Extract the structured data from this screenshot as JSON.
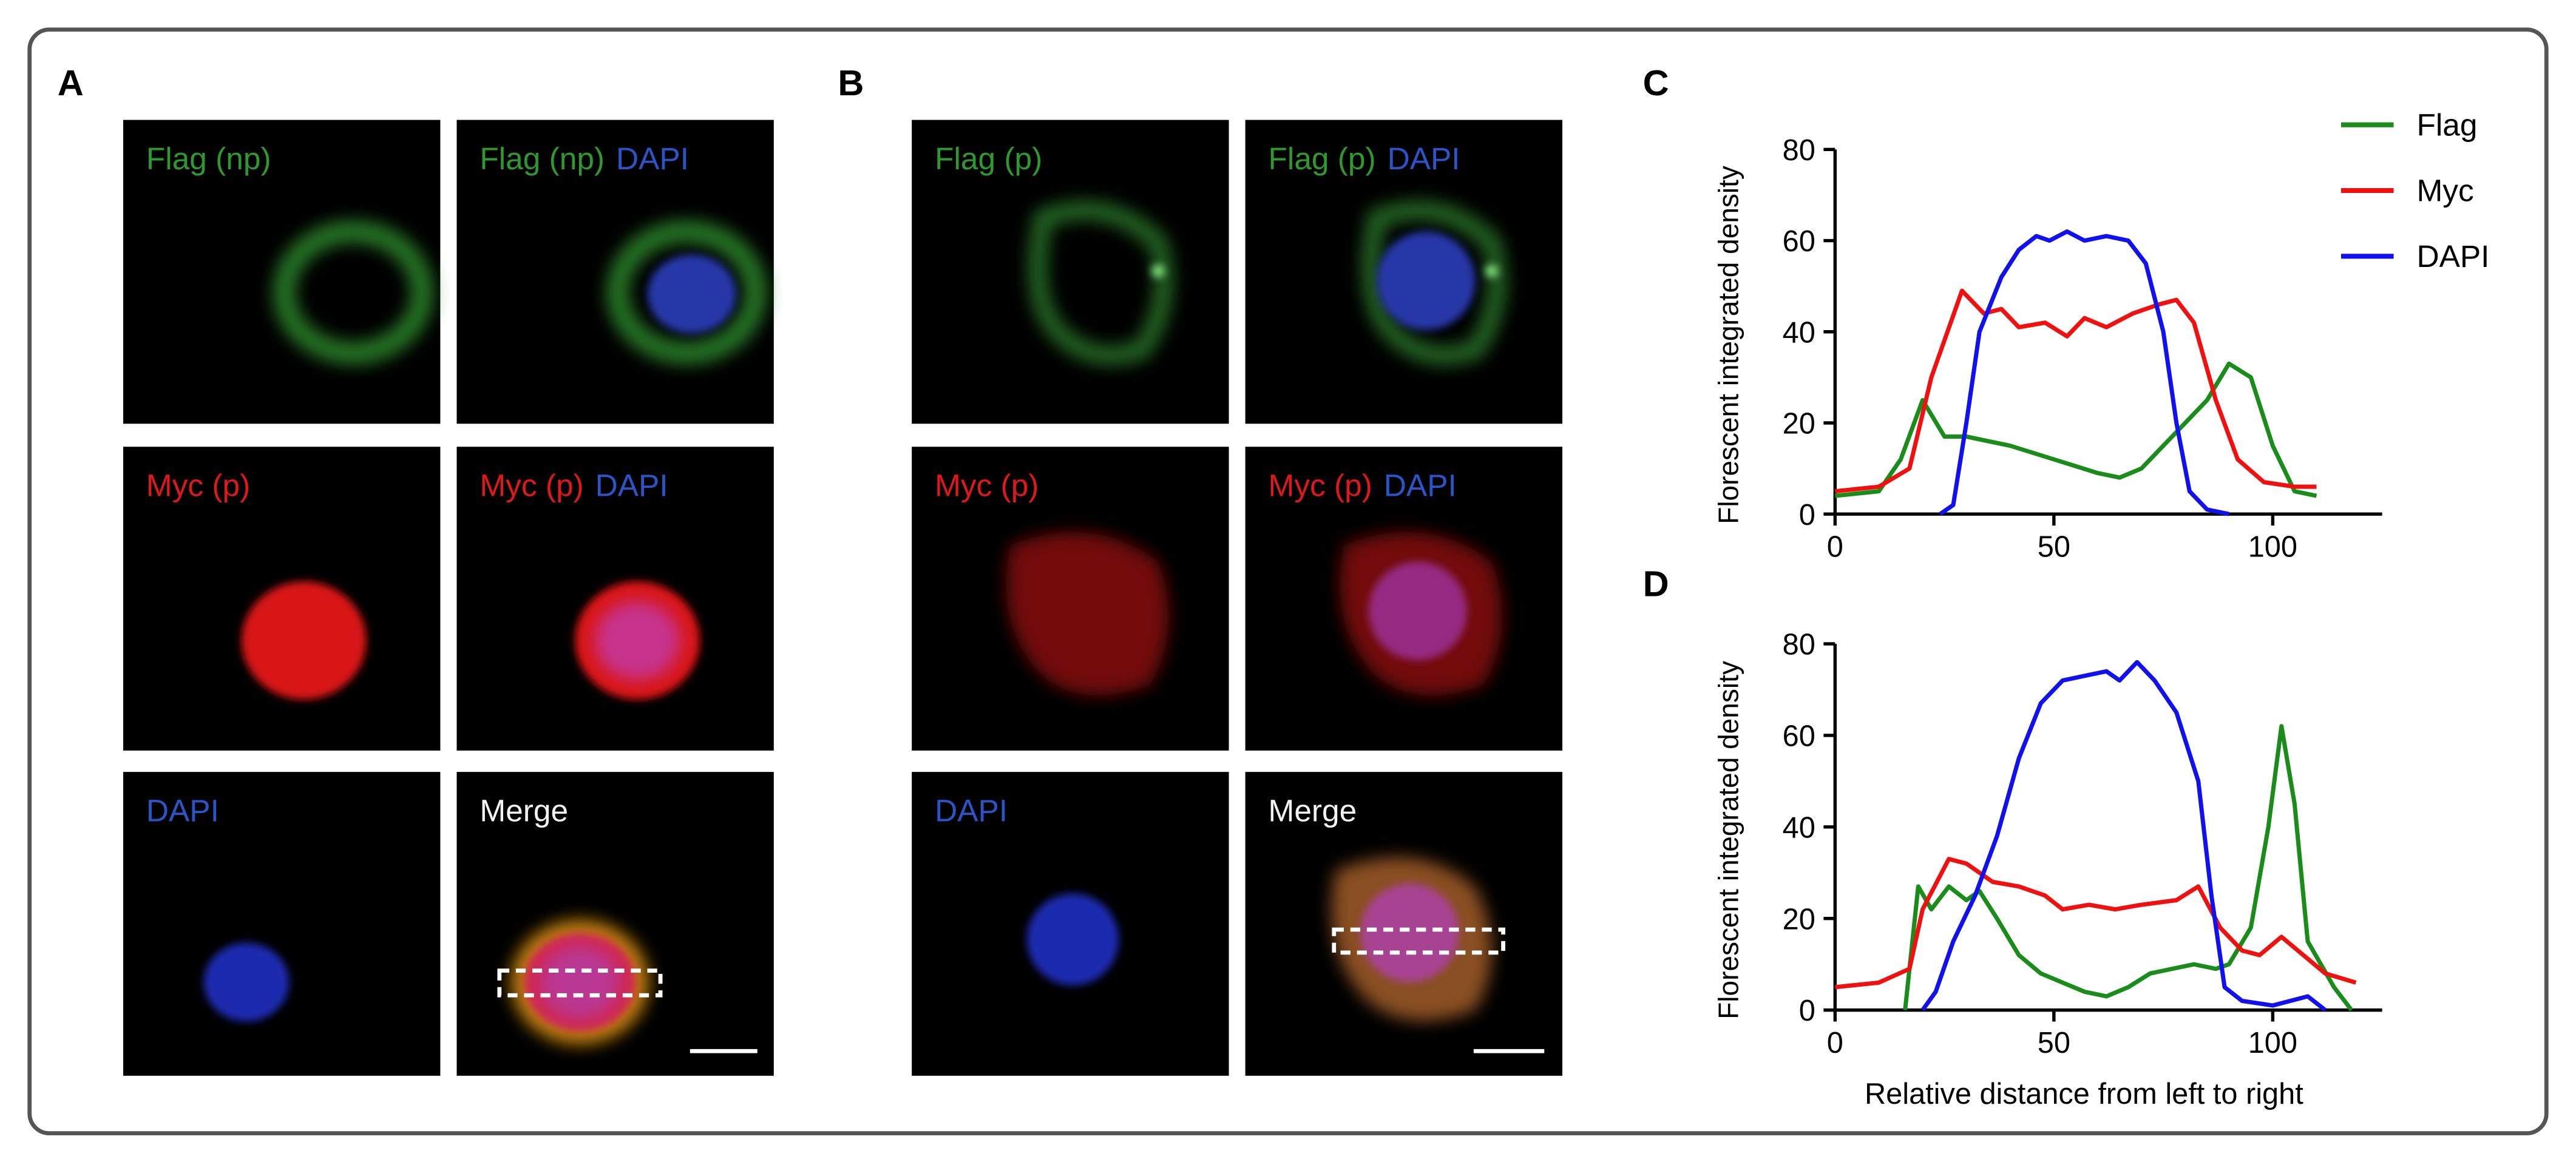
{
  "panels": [
    {
      "label": "A",
      "images": [
        [
          {
            "text": "Flag (np)",
            "color": "#2e9a2e"
          }
        ],
        [
          {
            "text": "Flag (np)",
            "color": "#2e9a2e"
          },
          {
            "text": "DAPI",
            "color": "#2a55c8"
          }
        ],
        [
          {
            "text": "Myc (p)",
            "color": "#e01818"
          }
        ],
        [
          {
            "text": "Myc (p)",
            "color": "#e01818"
          },
          {
            "text": "DAPI",
            "color": "#2a55c8"
          }
        ],
        [
          {
            "text": "DAPI",
            "color": "#2a55c8"
          }
        ],
        [
          {
            "text": "Merge",
            "color": "#f2f2f2"
          }
        ]
      ]
    },
    {
      "label": "B",
      "images": [
        [
          {
            "text": "Flag (p)",
            "color": "#2e9a2e"
          }
        ],
        [
          {
            "text": "Flag (p)",
            "color": "#2e9a2e"
          },
          {
            "text": "DAPI",
            "color": "#2a55c8"
          }
        ],
        [
          {
            "text": "Myc (p)",
            "color": "#e01818"
          }
        ],
        [
          {
            "text": "Myc (p)",
            "color": "#e01818"
          },
          {
            "text": "DAPI",
            "color": "#2a55c8"
          }
        ],
        [
          {
            "text": "DAPI",
            "color": "#2a55c8"
          }
        ],
        [
          {
            "text": "Merge",
            "color": "#f2f2f2"
          }
        ]
      ]
    }
  ],
  "chart_data": [
    {
      "label": "C",
      "type": "line",
      "ylabel": "Florescent integrated density",
      "xlim": [
        0,
        125
      ],
      "xticks": [
        0,
        50,
        100
      ],
      "ylim": [
        0,
        80
      ],
      "yticks": [
        0,
        20,
        40,
        60,
        80
      ],
      "legend": "upper right",
      "series": [
        {
          "name": "Flag",
          "color": "#1a8c1a",
          "x": [
            0,
            10,
            15,
            20,
            25,
            30,
            40,
            50,
            60,
            65,
            70,
            78,
            85,
            90,
            95,
            100,
            105,
            110
          ],
          "values": [
            4,
            5,
            12,
            25,
            17,
            17,
            15,
            12,
            9,
            8,
            10,
            18,
            25,
            33,
            30,
            15,
            5,
            4
          ]
        },
        {
          "name": "Myc",
          "color": "#f01010",
          "x": [
            0,
            10,
            17,
            22,
            29,
            34,
            38,
            42,
            48,
            53,
            57,
            62,
            68,
            74,
            78,
            82,
            87,
            92,
            98,
            105,
            110
          ],
          "values": [
            5,
            6,
            10,
            30,
            49,
            44,
            45,
            41,
            42,
            39,
            43,
            41,
            44,
            46,
            47,
            42,
            25,
            12,
            7,
            6,
            6
          ]
        },
        {
          "name": "DAPI",
          "color": "#1010f0",
          "x": [
            24,
            27,
            30,
            33,
            38,
            42,
            46,
            49,
            53,
            57,
            62,
            67,
            71,
            75,
            78,
            81,
            85,
            90
          ],
          "values": [
            0,
            2,
            20,
            40,
            52,
            58,
            61,
            60,
            62,
            60,
            61,
            60,
            55,
            40,
            20,
            5,
            1,
            0
          ]
        }
      ]
    },
    {
      "label": "D",
      "type": "line",
      "ylabel": "Florescent integrated density",
      "xlabel": "Relative distance from left to right",
      "xlim": [
        0,
        125
      ],
      "xticks": [
        0,
        50,
        100
      ],
      "ylim": [
        0,
        80
      ],
      "yticks": [
        0,
        20,
        40,
        60,
        80
      ],
      "series": [
        {
          "color": "#1a8c1a",
          "x": [
            16,
            19,
            22,
            26,
            30,
            33,
            37,
            42,
            47,
            52,
            57,
            62,
            67,
            72,
            77,
            82,
            87,
            90,
            95,
            99,
            102,
            105,
            108,
            111,
            114,
            118
          ],
          "values": [
            0,
            27,
            22,
            27,
            24,
            26,
            20,
            12,
            8,
            6,
            4,
            3,
            5,
            8,
            9,
            10,
            9,
            10,
            18,
            40,
            62,
            45,
            15,
            10,
            5,
            0
          ]
        },
        {
          "color": "#f01010",
          "x": [
            0,
            10,
            17,
            20,
            26,
            30,
            36,
            42,
            48,
            52,
            58,
            64,
            70,
            78,
            83,
            88,
            93,
            97,
            102,
            107,
            112,
            119
          ],
          "values": [
            5,
            6,
            9,
            22,
            33,
            32,
            28,
            27,
            25,
            22,
            23,
            22,
            23,
            24,
            27,
            18,
            13,
            12,
            16,
            12,
            8,
            6
          ]
        },
        {
          "color": "#1010f0",
          "x": [
            20,
            23,
            27,
            32,
            37,
            42,
            47,
            52,
            57,
            62,
            65,
            69,
            73,
            78,
            83,
            86,
            89,
            93,
            100,
            108,
            112
          ],
          "values": [
            0,
            4,
            15,
            25,
            38,
            55,
            67,
            72,
            73,
            74,
            72,
            76,
            72,
            65,
            50,
            25,
            5,
            2,
            1,
            3,
            0
          ]
        }
      ]
    }
  ]
}
